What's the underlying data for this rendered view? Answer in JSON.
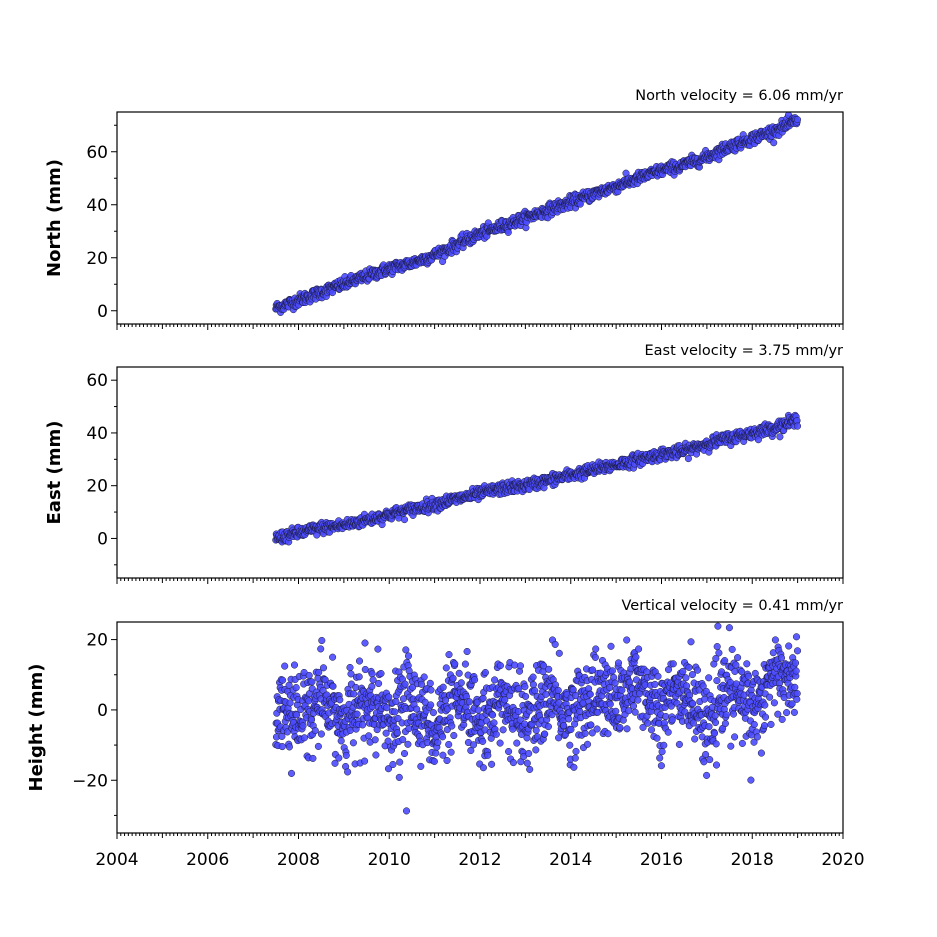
{
  "chart_data": [
    {
      "type": "scatter",
      "title": "North velocity = 6.06 mm/yr",
      "ylabel": "North (mm)",
      "xlim": [
        2004,
        2020
      ],
      "ylim": [
        -5,
        75
      ],
      "yticks": [
        0,
        20,
        40,
        60
      ],
      "xticks": [],
      "color": "#4b4bff",
      "velocity_mm_per_yr": 6.06,
      "series": [
        {
          "x": [
            2007.5,
            2008.0,
            2008.5,
            2009.0,
            2009.5,
            2010.0,
            2010.5,
            2011.0,
            2011.5,
            2012.0,
            2012.5,
            2013.0,
            2013.5,
            2014.0,
            2014.5,
            2015.0,
            2015.5,
            2016.0,
            2016.5,
            2017.0,
            2017.5,
            2018.0,
            2018.5,
            2019.0
          ],
          "y": [
            1,
            4,
            7,
            10,
            13,
            16,
            18,
            21,
            25,
            29,
            32,
            35,
            38,
            41,
            44,
            47,
            50,
            53,
            55,
            58,
            62,
            65,
            68,
            72
          ]
        }
      ]
    },
    {
      "type": "scatter",
      "title": "East velocity = 3.75 mm/yr",
      "ylabel": "East (mm)",
      "xlim": [
        2004,
        2020
      ],
      "ylim": [
        -15,
        65
      ],
      "yticks": [
        0,
        20,
        40,
        60
      ],
      "xticks": [],
      "color": "#4b4bff",
      "velocity_mm_per_yr": 3.75,
      "series": [
        {
          "x": [
            2007.5,
            2008.0,
            2008.5,
            2009.0,
            2009.5,
            2010.0,
            2010.5,
            2011.0,
            2011.5,
            2012.0,
            2012.5,
            2013.0,
            2013.5,
            2014.0,
            2014.5,
            2015.0,
            2015.5,
            2016.0,
            2016.5,
            2017.0,
            2017.5,
            2018.0,
            2018.5,
            2019.0
          ],
          "y": [
            0,
            2,
            4,
            5,
            7,
            9,
            11,
            13,
            15,
            17,
            19,
            20,
            22,
            24,
            26,
            28,
            30,
            32,
            33,
            36,
            38,
            40,
            42,
            45
          ]
        }
      ]
    },
    {
      "type": "scatter",
      "title": "Vertical velocity = 0.41 mm/yr",
      "ylabel": "Height (mm)",
      "xlim": [
        2004,
        2020
      ],
      "ylim": [
        -35,
        25
      ],
      "yticks": [
        -20,
        0,
        20
      ],
      "xticks": [
        "2004",
        "2006",
        "2008",
        "2010",
        "2012",
        "2014",
        "2016",
        "2018",
        "2020"
      ],
      "color": "#4b4bff",
      "velocity_mm_per_yr": 0.41,
      "series": [
        {
          "x": [
            2007.5,
            2008.0,
            2008.5,
            2009.0,
            2009.5,
            2010.0,
            2010.5,
            2011.0,
            2011.5,
            2012.0,
            2012.5,
            2013.0,
            2013.5,
            2014.0,
            2014.5,
            2015.0,
            2015.5,
            2016.0,
            2016.5,
            2017.0,
            2017.5,
            2018.0,
            2018.5,
            2019.0
          ],
          "y": [
            3,
            -2,
            4,
            -4,
            2,
            -3,
            3,
            -5,
            2,
            -3,
            3,
            -4,
            4,
            -2,
            5,
            2,
            8,
            0,
            6,
            -4,
            6,
            1,
            10,
            8
          ]
        }
      ]
    }
  ]
}
